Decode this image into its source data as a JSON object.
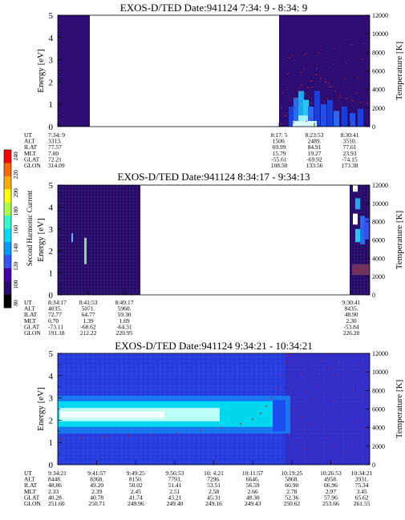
{
  "colorbar": {
    "label": "Second Harmonic Current",
    "ticks": [
      "240",
      "220",
      "200",
      "180",
      "160",
      "140",
      "120",
      "100",
      "80"
    ]
  },
  "chart_data": [
    {
      "type": "heatmap",
      "title": "EXOS-D/TED   Date:941124  7:34: 9 - 8:34: 9",
      "ylabel": "Energy [eV]",
      "y2label": "Temperature [K]",
      "ylim": [
        0,
        5
      ],
      "y2lim": [
        0,
        12000
      ],
      "yticks": [
        "0",
        "1",
        "2",
        "3",
        "4",
        "5"
      ],
      "y2ticks": [
        "0",
        "2000",
        "4000",
        "6000",
        "8000",
        "10000",
        "12000"
      ],
      "row_labels": [
        "UT",
        "ALT",
        "ILAT",
        "MLT",
        "GLAT",
        "GLON"
      ],
      "columns": [
        {
          "values": [
            "7:34: 9",
            "3313.",
            "77.57",
            "7.00",
            "72.21",
            "314.09"
          ]
        },
        {
          "values": [
            "8:17: 5",
            "1500.",
            "69.99",
            "15.79",
            "-55.61",
            "108.50"
          ]
        },
        {
          "values": [
            "8:23:53",
            "2489.",
            "84.91",
            "19.27",
            "-69.92",
            "133.56"
          ]
        },
        {
          "values": [
            "8:30:41",
            "3510.",
            "77.61",
            "23.93",
            "-74.15",
            "173.38"
          ]
        }
      ]
    },
    {
      "type": "heatmap",
      "title": "EXOS-D/TED   Date:941124  8:34:17 - 9:34:13",
      "ylabel": "Energy [eV]",
      "y2label": "Temperature [K]",
      "ylim": [
        0,
        5
      ],
      "y2lim": [
        0,
        12000
      ],
      "yticks": [
        "0",
        "1",
        "2",
        "3",
        "4",
        "5"
      ],
      "y2ticks": [
        "0",
        "2000",
        "4000",
        "6000",
        "8000",
        "10000",
        "12000"
      ],
      "row_labels": [
        "UT",
        "ALT",
        "ILAT",
        "MLT",
        "GLAT",
        "GLON"
      ],
      "columns": [
        {
          "values": [
            "8:34:17",
            "4035.",
            "72.77",
            "0.70",
            "-73.11",
            "191.18"
          ]
        },
        {
          "values": [
            "8:41:53",
            "5071.",
            "64.77",
            "1.39",
            "-68.62",
            "212.22"
          ]
        },
        {
          "values": [
            "8:49:17",
            "5960.",
            "59.30",
            "1.69",
            "-64.31",
            "220.95"
          ]
        },
        {
          "values": [
            "9:30:41",
            "8435.",
            "48.90",
            "2.30",
            "-53.84",
            "226.20"
          ]
        }
      ]
    },
    {
      "type": "heatmap",
      "title": "EXOS-D/TED   Date:941124  9:34:21 - 10:34:21",
      "ylabel": "Energy [eV]",
      "y2label": "Temperature [K]",
      "ylim": [
        0,
        5
      ],
      "y2lim": [
        0,
        12000
      ],
      "yticks": [
        "0",
        "1",
        "2",
        "3",
        "4",
        "5"
      ],
      "y2ticks": [
        "0",
        "2000",
        "4000",
        "6000",
        "8000",
        "10000",
        "12000"
      ],
      "row_labels": [
        "UT",
        "ALT",
        "ILAT",
        "MLT",
        "GLAT",
        "GLON"
      ],
      "columns": [
        {
          "values": [
            "9:34:21",
            "8448.",
            "48.86",
            "2.33",
            "40.28",
            "251.60"
          ]
        },
        {
          "values": [
            "9:41:57",
            "8368.",
            "49.20",
            "2.39",
            "40.78",
            "250.71"
          ]
        },
        {
          "values": [
            "9:49:25",
            "8150.",
            "50.02",
            "2.45",
            "41.74",
            "249.96"
          ]
        },
        {
          "values": [
            "9:56:53",
            "7793.",
            "51.41",
            "2.51",
            "43.21",
            "249.40"
          ]
        },
        {
          "values": [
            "10: 4:21",
            "7296.",
            "53.51",
            "2.58",
            "45.31",
            "249.16"
          ]
        },
        {
          "values": [
            "10:11:57",
            "6646.",
            "56.59",
            "2.66",
            "48.30",
            "249.43"
          ]
        },
        {
          "values": [
            "10:19:25",
            "5868.",
            "60.90",
            "2.78",
            "52.36",
            "250.62"
          ]
        },
        {
          "values": [
            "10:26:53",
            "4958.",
            "66.96",
            "2.97",
            "57.96",
            "253.66"
          ]
        },
        {
          "values": [
            "10:34:21",
            "3931.",
            "75.34",
            "3.45",
            "65.62",
            "261.55"
          ]
        }
      ]
    }
  ]
}
